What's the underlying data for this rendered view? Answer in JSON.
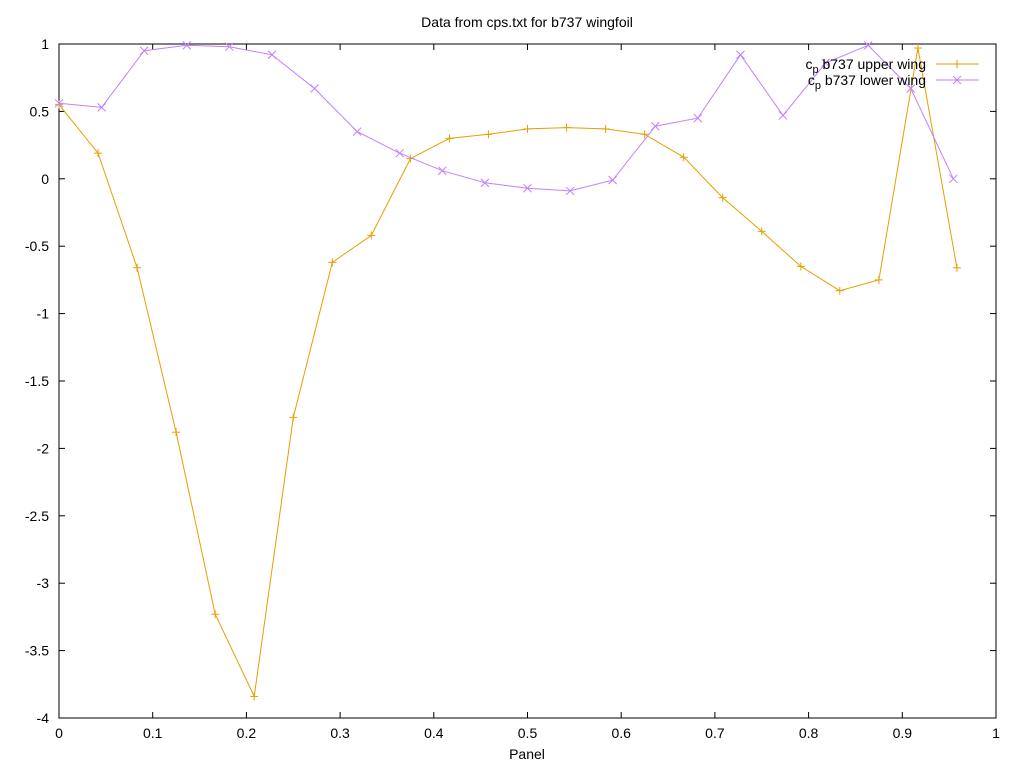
{
  "chart_data": {
    "type": "line",
    "title": "Data from cps.txt for b737 wingfoil",
    "xlabel": "Panel",
    "ylabel": "",
    "xlim": [
      0,
      1
    ],
    "ylim": [
      -4,
      1
    ],
    "x_ticks": [
      0,
      0.1,
      0.2,
      0.3,
      0.4,
      0.5,
      0.6,
      0.7,
      0.8,
      0.9,
      1
    ],
    "x_tick_labels": [
      "0",
      "0.1",
      "0.2",
      "0.3",
      "0.4",
      "0.5",
      "0.6",
      "0.7",
      "0.8",
      "0.9",
      "1"
    ],
    "y_ticks": [
      1,
      0.5,
      0,
      -0.5,
      -1,
      -1.5,
      -2,
      -2.5,
      -3,
      -3.5,
      -4
    ],
    "y_tick_labels": [
      "1",
      "0.5",
      "0",
      "-0.5",
      "-1",
      "-1.5",
      "-2",
      "-2.5",
      "-3",
      "-3.5",
      "-4"
    ],
    "grid": false,
    "legend_position": "top-right",
    "series": [
      {
        "name_base": "c",
        "name_sub": "p",
        "name_rest": " b737 upper wing",
        "color": "#e69f00",
        "marker": "plus",
        "x": [
          0.0,
          0.0417,
          0.0833,
          0.125,
          0.1667,
          0.2083,
          0.25,
          0.2917,
          0.3333,
          0.375,
          0.4167,
          0.4583,
          0.5,
          0.5417,
          0.5833,
          0.625,
          0.6667,
          0.7083,
          0.75,
          0.7917,
          0.8333,
          0.875,
          0.9167,
          0.9583
        ],
        "y": [
          0.55,
          0.19,
          -0.66,
          -1.88,
          -3.23,
          -3.84,
          -1.77,
          -0.62,
          -0.42,
          0.15,
          0.3,
          0.33,
          0.37,
          0.38,
          0.37,
          0.33,
          0.16,
          -0.14,
          -0.39,
          -0.65,
          -0.83,
          -0.75,
          0.97,
          -0.66
        ]
      },
      {
        "name_base": "c",
        "name_sub": "p",
        "name_rest": " b737 lower wing",
        "color": "#c080ff",
        "marker": "cross",
        "x": [
          0.0,
          0.0455,
          0.0909,
          0.1364,
          0.1818,
          0.2273,
          0.2727,
          0.3182,
          0.3636,
          0.4091,
          0.4545,
          0.5,
          0.5455,
          0.5909,
          0.6364,
          0.6818,
          0.7273,
          0.7727,
          0.8182,
          0.8636,
          0.9091,
          0.9545
        ],
        "y": [
          0.56,
          0.53,
          0.95,
          0.99,
          0.98,
          0.92,
          0.67,
          0.35,
          0.19,
          0.06,
          -0.03,
          -0.07,
          -0.09,
          -0.01,
          0.39,
          0.45,
          0.92,
          0.47,
          0.86,
          0.99,
          0.67,
          0.0
        ]
      }
    ]
  }
}
